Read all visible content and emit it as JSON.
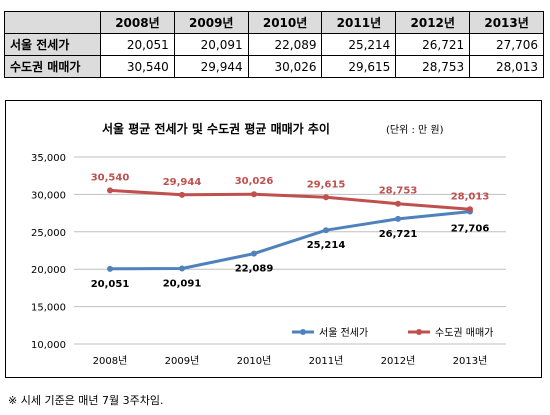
{
  "table": {
    "columns": [
      "2008년",
      "2009년",
      "2010년",
      "2011년",
      "2012년",
      "2013년"
    ],
    "rows": [
      {
        "label": "서울 전세가",
        "values": [
          "20,051",
          "20,091",
          "22,089",
          "25,214",
          "26,721",
          "27,706"
        ]
      },
      {
        "label": "수도권 매매가",
        "values": [
          "30,540",
          "29,944",
          "30,026",
          "29,615",
          "28,753",
          "28,013"
        ]
      }
    ]
  },
  "chart_data": {
    "type": "line",
    "title": "서울 평균 전세가 및 수도권 평균 매매가 추이",
    "subtitle": "(단위 : 만 원)",
    "categories": [
      "2008년",
      "2009년",
      "2010년",
      "2011년",
      "2012년",
      "2013년"
    ],
    "series": [
      {
        "name": "서울 전세가",
        "values": [
          20051,
          20091,
          22089,
          25214,
          26721,
          27706
        ],
        "labels": [
          "20,051",
          "20,091",
          "22,089",
          "25,214",
          "26,721",
          "27,706"
        ],
        "color": "#4f81bd",
        "label_color": "#000000"
      },
      {
        "name": "수도권 매매가",
        "values": [
          30540,
          29944,
          30026,
          29615,
          28753,
          28013
        ],
        "labels": [
          "30,540",
          "29,944",
          "30,026",
          "29,615",
          "28,753",
          "28,013"
        ],
        "color": "#c0504d",
        "label_color": "#c0504d"
      }
    ],
    "ylim": [
      10000,
      35000
    ],
    "yticks": [
      10000,
      15000,
      20000,
      25000,
      30000,
      35000
    ],
    "ytick_labels": [
      "10,000",
      "15,000",
      "20,000",
      "25,000",
      "30,000",
      "35,000"
    ],
    "grid": true,
    "legend_position": "bottom-right"
  },
  "footnote": "※ 시세 기준은 매년 7월 3주차임."
}
